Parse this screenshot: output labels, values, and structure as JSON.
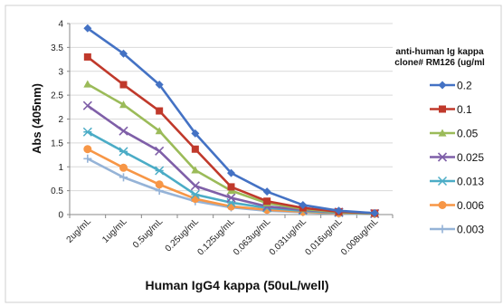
{
  "chart_data": {
    "type": "line",
    "title": "",
    "xlabel": "Human IgG4 kappa (50uL/well)",
    "ylabel": "Abs (405nm)",
    "ylim": [
      0,
      4
    ],
    "yticks": [
      0,
      0.5,
      1,
      1.5,
      2,
      2.5,
      3,
      3.5,
      4
    ],
    "ytick_labels": [
      "0",
      "0.5",
      "1",
      "1.5",
      "2",
      "2.5",
      "3",
      "3.5",
      "4"
    ],
    "grid": "horizontal",
    "legend_placement": "right",
    "legend_title_lines": [
      "anti-human Ig kappa",
      "clone# RM126 (ug/ml"
    ],
    "categories": [
      "2ug/mL",
      "1ug/mL",
      "0.5ug/mL",
      "0.25ug/mL",
      "0.125ug/mL",
      "0.063ug/mL",
      "0.031ug/mL",
      "0.016ug/mL",
      "0.008ug/mL"
    ],
    "series": [
      {
        "name": "0.2",
        "color": "#4472c4",
        "marker": "diamond",
        "values": [
          3.9,
          3.37,
          2.72,
          1.7,
          0.87,
          0.48,
          0.2,
          0.08,
          0.03
        ]
      },
      {
        "name": "0.1",
        "color": "#c0392b",
        "marker": "square",
        "values": [
          3.3,
          2.72,
          2.17,
          1.37,
          0.58,
          0.28,
          0.14,
          0.06,
          0.03
        ]
      },
      {
        "name": "0.05",
        "color": "#9bbb59",
        "marker": "triangle",
        "values": [
          2.73,
          2.3,
          1.75,
          0.93,
          0.5,
          0.24,
          0.12,
          0.05,
          0.02
        ]
      },
      {
        "name": "0.025",
        "color": "#7f5fa8",
        "marker": "x",
        "values": [
          2.28,
          1.75,
          1.33,
          0.6,
          0.35,
          0.17,
          0.1,
          0.05,
          0.02
        ]
      },
      {
        "name": "0.013",
        "color": "#4bacc6",
        "marker": "star",
        "values": [
          1.73,
          1.32,
          0.92,
          0.42,
          0.25,
          0.14,
          0.08,
          0.04,
          0.02
        ]
      },
      {
        "name": "0.006",
        "color": "#f79646",
        "marker": "circle",
        "values": [
          1.37,
          0.98,
          0.63,
          0.33,
          0.17,
          0.1,
          0.06,
          0.03,
          0.02
        ]
      },
      {
        "name": "0.003",
        "color": "#95b3d7",
        "marker": "plus",
        "values": [
          1.17,
          0.78,
          0.5,
          0.28,
          0.15,
          0.08,
          0.05,
          0.02,
          0.01
        ]
      }
    ]
  }
}
